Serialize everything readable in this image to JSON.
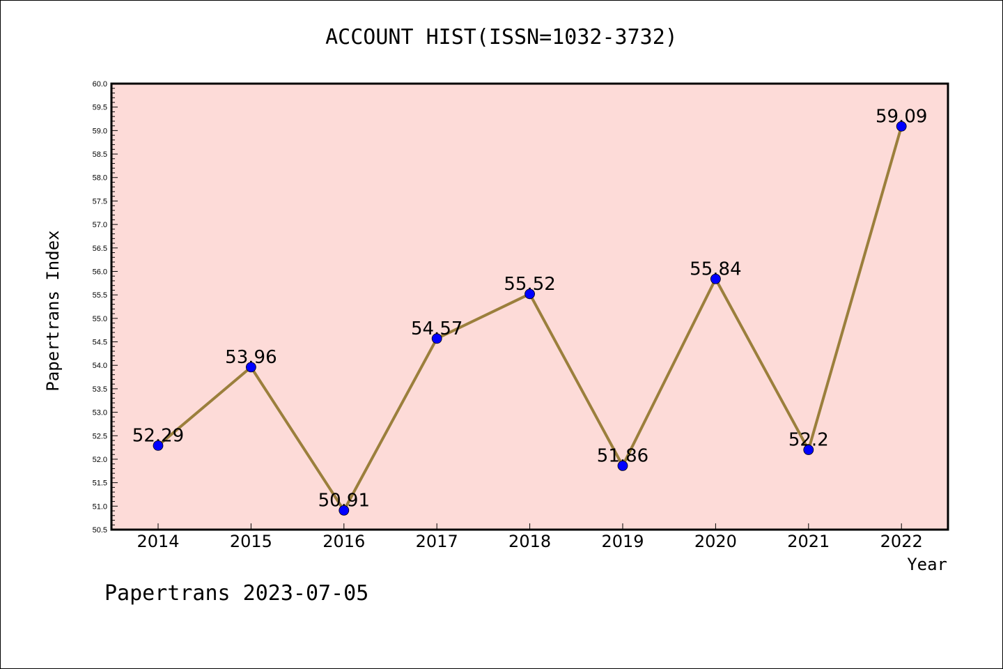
{
  "chart_data": {
    "type": "line",
    "title": "ACCOUNT HIST(ISSN=1032-3732)",
    "xlabel": "Year",
    "ylabel": "Papertrans Index",
    "x": [
      "2014",
      "2015",
      "2016",
      "2017",
      "2018",
      "2019",
      "2020",
      "2021",
      "2022"
    ],
    "series": [
      {
        "values": [
          52.29,
          53.96,
          50.91,
          54.57,
          55.52,
          51.86,
          55.84,
          52.2,
          59.09
        ],
        "data_labels": [
          "52.29",
          "53.96",
          "50.91",
          "54.57",
          "55.52",
          "51.86",
          "55.84",
          "52.2",
          "59.09"
        ]
      }
    ],
    "ylim": [
      50.5,
      60.0
    ],
    "yticks": [
      "50.5",
      "51.0",
      "51.5",
      "52.0",
      "52.5",
      "53.0",
      "53.5",
      "54.0",
      "54.5",
      "55.0",
      "55.5",
      "56.0",
      "56.5",
      "57.0",
      "57.5",
      "58.0",
      "58.5",
      "59.0",
      "59.5",
      "60.0"
    ],
    "grid": false,
    "colors": {
      "plot_background": "#fddbd8",
      "line": "#9b7f3c",
      "marker": "#0000ff"
    }
  },
  "footer": "Papertrans 2023-07-05"
}
